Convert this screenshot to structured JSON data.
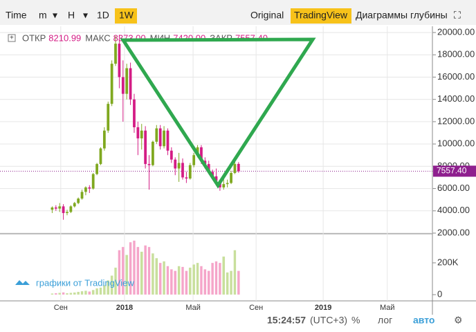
{
  "toolbar": {
    "left": [
      "Time",
      "m",
      "H",
      "1D",
      "1W"
    ],
    "right": [
      "Original",
      "TradingView",
      "Диаграммы глубины"
    ]
  },
  "ohlc_legend": [
    {
      "label": "ОТКР",
      "value": "8210.99"
    },
    {
      "label": "МАКС",
      "value": "8373.00"
    },
    {
      "label": "МИН",
      "value": "7420.00"
    },
    {
      "label": "ЗАКР",
      "value": "7557.40"
    }
  ],
  "watermark": "графики от TradingView",
  "status_bar": {
    "time": "15:24:57",
    "zone": "(UTC+3)",
    "items": [
      "%",
      "лог",
      "авто"
    ]
  },
  "chart_data": {
    "type": "candlestick",
    "up_color": "#7fa81f",
    "down_color": "#d41c85",
    "volume_up_color": "#c8df9c",
    "volume_down_color": "#f5a5c9",
    "grid": true,
    "x": [
      0,
      1,
      2,
      3,
      4,
      5,
      6,
      7,
      8,
      9,
      10,
      11,
      12,
      13,
      14,
      15,
      16,
      17,
      18,
      19,
      20,
      21,
      22,
      23,
      24,
      25,
      26,
      27,
      28,
      29,
      30,
      31,
      32,
      33,
      34,
      35,
      36,
      37,
      38,
      39,
      40,
      41,
      42,
      43,
      44,
      45,
      46,
      47,
      48,
      49,
      50
    ],
    "open": [
      4100,
      4300,
      4200,
      4400,
      3800,
      3900,
      4400,
      4700,
      5100,
      5700,
      6100,
      6000,
      7300,
      8200,
      9600,
      11200,
      13600,
      17200,
      19000,
      16000,
      14500,
      16800,
      14000,
      11500,
      10500,
      11200,
      8200,
      8100,
      10200,
      11400,
      9800,
      11200,
      9400,
      8600,
      7800,
      8300,
      7000,
      6900,
      8100,
      9000,
      9700,
      8500,
      8200,
      7500,
      7100,
      6700,
      6100,
      6400,
      6500,
      7400,
      8210.99
    ],
    "high": [
      4400,
      4500,
      4700,
      4600,
      4100,
      4500,
      4800,
      5200,
      5900,
      6200,
      6300,
      7400,
      8300,
      9700,
      11500,
      13800,
      17500,
      19700,
      19800,
      17500,
      17200,
      17300,
      14500,
      12000,
      11800,
      11600,
      9000,
      10300,
      11700,
      11700,
      11600,
      11400,
      9700,
      8800,
      9200,
      8700,
      7500,
      8300,
      9200,
      9900,
      9900,
      8800,
      8500,
      7700,
      7800,
      6800,
      6900,
      6800,
      7600,
      8400,
      8373
    ],
    "low": [
      3800,
      4000,
      3900,
      3200,
      3600,
      3800,
      4300,
      4600,
      5000,
      5400,
      5600,
      5900,
      7200,
      8100,
      9400,
      11000,
      13400,
      17000,
      15000,
      12000,
      14000,
      13500,
      11000,
      9000,
      9500,
      7800,
      5900,
      8000,
      10000,
      9500,
      9600,
      9000,
      8300,
      7200,
      6600,
      6800,
      6500,
      6800,
      7900,
      8800,
      8200,
      7800,
      7300,
      6900,
      6500,
      5800,
      5900,
      6100,
      6400,
      7300,
      7420
    ],
    "close": [
      4300,
      4200,
      4400,
      3800,
      3900,
      4400,
      4700,
      5100,
      5700,
      6100,
      6000,
      7300,
      8200,
      9600,
      11200,
      13600,
      17200,
      19000,
      16000,
      14500,
      16800,
      14000,
      11500,
      10500,
      11200,
      8200,
      8100,
      10200,
      11400,
      9800,
      11200,
      9400,
      8600,
      7800,
      8300,
      7000,
      6900,
      8100,
      9000,
      9700,
      8500,
      8200,
      7500,
      7100,
      6700,
      6100,
      6400,
      6500,
      7400,
      8200,
      7557.4
    ],
    "volume": [
      8000,
      10000,
      12000,
      15000,
      10000,
      12000,
      14000,
      18000,
      22000,
      25000,
      20000,
      30000,
      40000,
      45000,
      60000,
      90000,
      120000,
      170000,
      280000,
      300000,
      250000,
      330000,
      340000,
      300000,
      270000,
      310000,
      300000,
      260000,
      230000,
      200000,
      210000,
      180000,
      160000,
      150000,
      180000,
      175000,
      150000,
      170000,
      190000,
      200000,
      180000,
      160000,
      150000,
      200000,
      210000,
      200000,
      240000,
      140000,
      150000,
      280000,
      150000
    ],
    "xlim": [
      -14,
      102
    ],
    "xticks": [
      {
        "value": 2.3,
        "label": "Сен"
      },
      {
        "value": 19.4,
        "label": "2018"
      },
      {
        "value": 37.8,
        "label": "Май"
      },
      {
        "value": 54.7,
        "label": "Сен"
      },
      {
        "value": 72.7,
        "label": "2019"
      },
      {
        "value": 89.9,
        "label": "Май"
      }
    ],
    "ylim": [
      1940,
      20560
    ],
    "yticks": [
      {
        "value": 2000,
        "label": "2000.00"
      },
      {
        "value": 4000,
        "label": "4000.00"
      },
      {
        "value": 6000,
        "label": "6000.00"
      },
      {
        "value": 8000,
        "label": "8000.00"
      },
      {
        "value": 10000,
        "label": "10000.00"
      },
      {
        "value": 12000,
        "label": "12000.00"
      },
      {
        "value": 14000,
        "label": "14000.00"
      },
      {
        "value": 16000,
        "label": "16000.00"
      },
      {
        "value": 18000,
        "label": "18000.00"
      },
      {
        "value": 20000,
        "label": "20000.00"
      }
    ],
    "last_price": {
      "value": 7557.4,
      "label": "7557.40",
      "color": "#8e1f8e"
    },
    "vlim": [
      -39000,
      365000
    ],
    "vticks": [
      0,
      {
        "value": 200000,
        "label": "200K"
      }
    ]
  }
}
